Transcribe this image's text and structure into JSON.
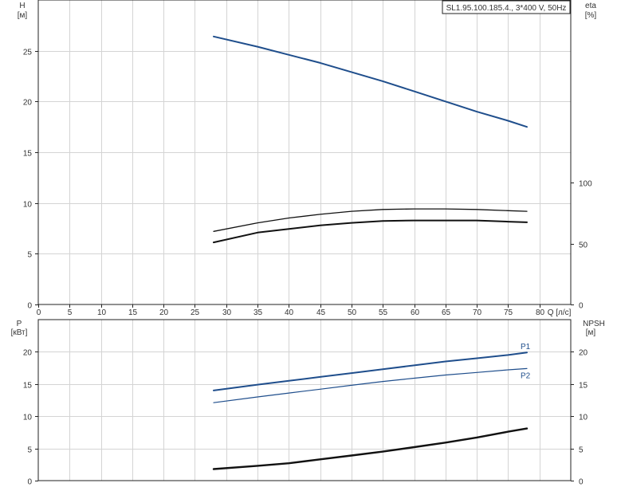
{
  "title": "SL1.95.100.185.4., 3*400 V, 50Hz",
  "colors": {
    "blue": "#1f4e8c",
    "black": "#111111",
    "grid": "#d4d4d4"
  },
  "top_left_axis": {
    "name": "H",
    "unit": "[м]"
  },
  "top_right_axis": {
    "name": "eta",
    "unit": "[%]"
  },
  "bottom_left_axis": {
    "name": "P",
    "unit": "[кВт]"
  },
  "bottom_right_axis": {
    "name": "NPSH",
    "unit": "[м]"
  },
  "x_axis_label": "Q [л/с]",
  "chart_data": [
    {
      "type": "line",
      "xlim": [
        0,
        85
      ],
      "ylim_left": [
        0,
        30
      ],
      "ylim_right": [
        0,
        250
      ],
      "x_ticks": [
        0,
        5,
        10,
        15,
        20,
        25,
        30,
        35,
        40,
        45,
        50,
        55,
        60,
        65,
        70,
        75,
        80
      ],
      "y_ticks_left": [
        0,
        5,
        10,
        15,
        20,
        25
      ],
      "y_ticks_right": [
        0,
        50,
        100
      ],
      "xlabel": "Q [л/с]",
      "ylabel_left": "H [м]",
      "ylabel_right": "eta [%]",
      "series": [
        {
          "axis": "left",
          "color": "#1f4e8c",
          "width": 2,
          "x": [
            28,
            35,
            40,
            45,
            50,
            55,
            60,
            65,
            70,
            75,
            78
          ],
          "y": [
            26.4,
            25.4,
            24.6,
            23.8,
            22.9,
            22.0,
            21.0,
            20.0,
            19.0,
            18.1,
            17.5
          ]
        },
        {
          "axis": "right",
          "color": "#111111",
          "width": 1.3,
          "x": [
            28,
            35,
            40,
            45,
            50,
            55,
            60,
            65,
            70,
            75,
            78
          ],
          "y": [
            60,
            67,
            71,
            74,
            76.5,
            78,
            78.5,
            78.5,
            78,
            77,
            76.5
          ]
        },
        {
          "axis": "right",
          "color": "#111111",
          "width": 2,
          "x": [
            28,
            35,
            40,
            45,
            50,
            55,
            60,
            65,
            70,
            75,
            78
          ],
          "y": [
            51,
            59,
            62,
            65,
            67,
            68.5,
            69,
            69,
            69,
            68,
            67.5
          ]
        }
      ]
    },
    {
      "type": "line",
      "xlim": [
        0,
        85
      ],
      "ylim_left": [
        0,
        25
      ],
      "ylim_right": [
        0,
        25
      ],
      "y_ticks_left": [
        0,
        5,
        10,
        15,
        20
      ],
      "y_ticks_right": [
        0,
        5,
        10,
        15,
        20
      ],
      "ylabel_left": "P [кВт]",
      "ylabel_right": "NPSH [м]",
      "series": [
        {
          "name": "P1",
          "axis": "left",
          "color": "#1f4e8c",
          "width": 2,
          "x": [
            28,
            35,
            40,
            45,
            50,
            55,
            60,
            65,
            70,
            75,
            78
          ],
          "y": [
            14.0,
            14.9,
            15.5,
            16.1,
            16.7,
            17.3,
            17.9,
            18.5,
            19.0,
            19.5,
            19.9
          ]
        },
        {
          "name": "P2",
          "axis": "left",
          "color": "#1f4e8c",
          "width": 1.2,
          "x": [
            28,
            35,
            40,
            45,
            50,
            55,
            60,
            65,
            70,
            75,
            78
          ],
          "y": [
            12.1,
            13.0,
            13.6,
            14.2,
            14.8,
            15.4,
            15.9,
            16.4,
            16.8,
            17.2,
            17.4
          ]
        },
        {
          "axis": "right",
          "color": "#111111",
          "width": 2.4,
          "x": [
            28,
            35,
            40,
            45,
            50,
            55,
            60,
            65,
            70,
            75,
            78
          ],
          "y": [
            1.8,
            2.3,
            2.7,
            3.3,
            3.9,
            4.5,
            5.2,
            5.9,
            6.7,
            7.6,
            8.1
          ]
        }
      ]
    }
  ]
}
